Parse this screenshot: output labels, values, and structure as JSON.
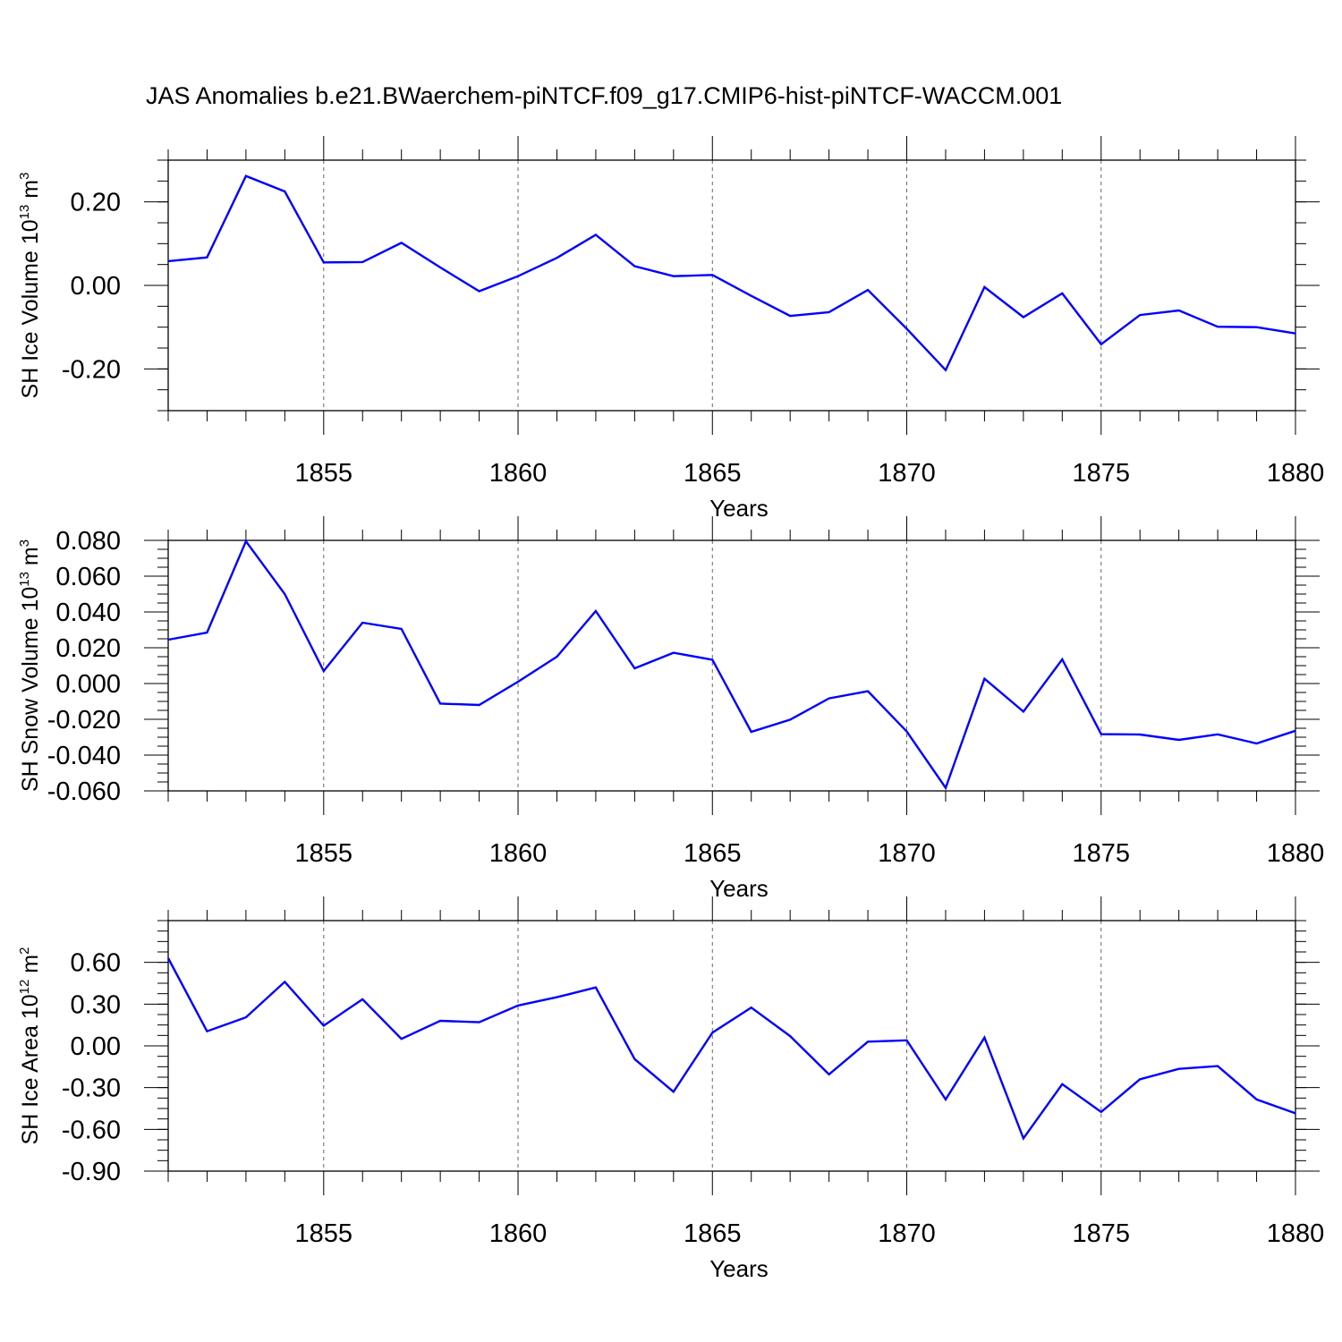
{
  "chart_data": {
    "title": "JAS Anomalies b.e21.BWaerchem-piNTCF.f09_g17.CMIP6-hist-piNTCF-WACCM.001",
    "panels": [
      {
        "type": "line",
        "name": "ice-volume",
        "ylabel_main": "SH Ice Volume 10",
        "ylabel_exp": "13",
        "ylabel_unit": " m",
        "ylabel_unit_exp": "3",
        "xlabel": "Years",
        "xlim": [
          1851,
          1880
        ],
        "ylim": [
          -0.3,
          0.3
        ],
        "yticks": [
          0.2,
          0.0,
          -0.2
        ],
        "ytick_labels": [
          "0.20",
          "0.00",
          "-0.20"
        ],
        "yminor_step": 0.05,
        "xticks": [
          1855,
          1860,
          1865,
          1870,
          1875,
          1880
        ],
        "xtick_labels": [
          "1855",
          "1860",
          "1865",
          "1870",
          "1875",
          "1880"
        ],
        "series_color": "#0000ff",
        "x": [
          1851,
          1852,
          1853,
          1854,
          1855,
          1856,
          1857,
          1858,
          1859,
          1860,
          1861,
          1862,
          1863,
          1864,
          1865,
          1866,
          1867,
          1868,
          1869,
          1870,
          1871,
          1872,
          1873,
          1874,
          1875,
          1876,
          1877,
          1878,
          1879,
          1880
        ],
        "values": [
          0.058,
          0.067,
          0.262,
          0.225,
          0.055,
          0.056,
          0.102,
          0.043,
          -0.014,
          0.022,
          0.066,
          0.121,
          0.046,
          0.022,
          0.025,
          -0.025,
          -0.073,
          -0.064,
          -0.011,
          -0.104,
          -0.203,
          -0.004,
          -0.076,
          -0.019,
          -0.141,
          -0.071,
          -0.06,
          -0.099,
          -0.1,
          -0.115
        ]
      },
      {
        "type": "line",
        "name": "snow-volume",
        "ylabel_main": "SH Snow Volume 10",
        "ylabel_exp": "13",
        "ylabel_unit": " m",
        "ylabel_unit_exp": "3",
        "xlabel": "Years",
        "xlim": [
          1851,
          1880
        ],
        "ylim": [
          -0.06,
          0.08
        ],
        "yticks": [
          0.08,
          0.06,
          0.04,
          0.02,
          0.0,
          -0.02,
          -0.04,
          -0.06
        ],
        "ytick_labels": [
          "0.080",
          "0.060",
          "0.040",
          "0.020",
          "0.000",
          "-0.020",
          "-0.040",
          "-0.060"
        ],
        "yminor_step": 0.005,
        "xticks": [
          1855,
          1860,
          1865,
          1870,
          1875,
          1880
        ],
        "xtick_labels": [
          "1855",
          "1860",
          "1865",
          "1870",
          "1875",
          "1880"
        ],
        "series_color": "#0000ff",
        "x": [
          1851,
          1852,
          1853,
          1854,
          1855,
          1856,
          1857,
          1858,
          1859,
          1860,
          1861,
          1862,
          1863,
          1864,
          1865,
          1866,
          1867,
          1868,
          1869,
          1870,
          1871,
          1872,
          1873,
          1874,
          1875,
          1876,
          1877,
          1878,
          1879,
          1880
        ],
        "values": [
          0.0245,
          0.0285,
          0.0795,
          0.05,
          0.007,
          0.034,
          0.0305,
          -0.0112,
          -0.012,
          0.001,
          0.015,
          0.0405,
          0.0085,
          0.0172,
          0.0133,
          -0.027,
          -0.0202,
          -0.0083,
          -0.0043,
          -0.0268,
          -0.0583,
          0.0027,
          -0.0157,
          0.0135,
          -0.0283,
          -0.0285,
          -0.0315,
          -0.0284,
          -0.0335,
          -0.0264
        ]
      },
      {
        "type": "line",
        "name": "ice-area",
        "ylabel_main": "SH Ice Area 10",
        "ylabel_exp": "12",
        "ylabel_unit": " m",
        "ylabel_unit_exp": "2",
        "xlabel": "Years",
        "xlim": [
          1851,
          1880
        ],
        "ylim": [
          -0.9,
          0.9
        ],
        "yticks": [
          0.6,
          0.3,
          0.0,
          -0.3,
          -0.6,
          -0.9
        ],
        "ytick_labels": [
          "0.60",
          "0.30",
          "0.00",
          "-0.30",
          "-0.60",
          "-0.90"
        ],
        "yminor_step": 0.075,
        "xticks": [
          1855,
          1860,
          1865,
          1870,
          1875,
          1880
        ],
        "xtick_labels": [
          "1855",
          "1860",
          "1865",
          "1870",
          "1875",
          "1880"
        ],
        "series_color": "#0000ff",
        "x": [
          1851,
          1852,
          1853,
          1854,
          1855,
          1856,
          1857,
          1858,
          1859,
          1860,
          1861,
          1862,
          1863,
          1864,
          1865,
          1866,
          1867,
          1868,
          1869,
          1870,
          1871,
          1872,
          1873,
          1874,
          1875,
          1876,
          1877,
          1878,
          1879,
          1880
        ],
        "values": [
          0.63,
          0.105,
          0.205,
          0.46,
          0.145,
          0.335,
          0.05,
          0.18,
          0.17,
          0.29,
          0.35,
          0.42,
          -0.095,
          -0.33,
          0.095,
          0.275,
          0.07,
          -0.205,
          0.03,
          0.04,
          -0.385,
          0.06,
          -0.665,
          -0.275,
          -0.475,
          -0.24,
          -0.165,
          -0.145,
          -0.385,
          -0.485
        ]
      }
    ]
  }
}
